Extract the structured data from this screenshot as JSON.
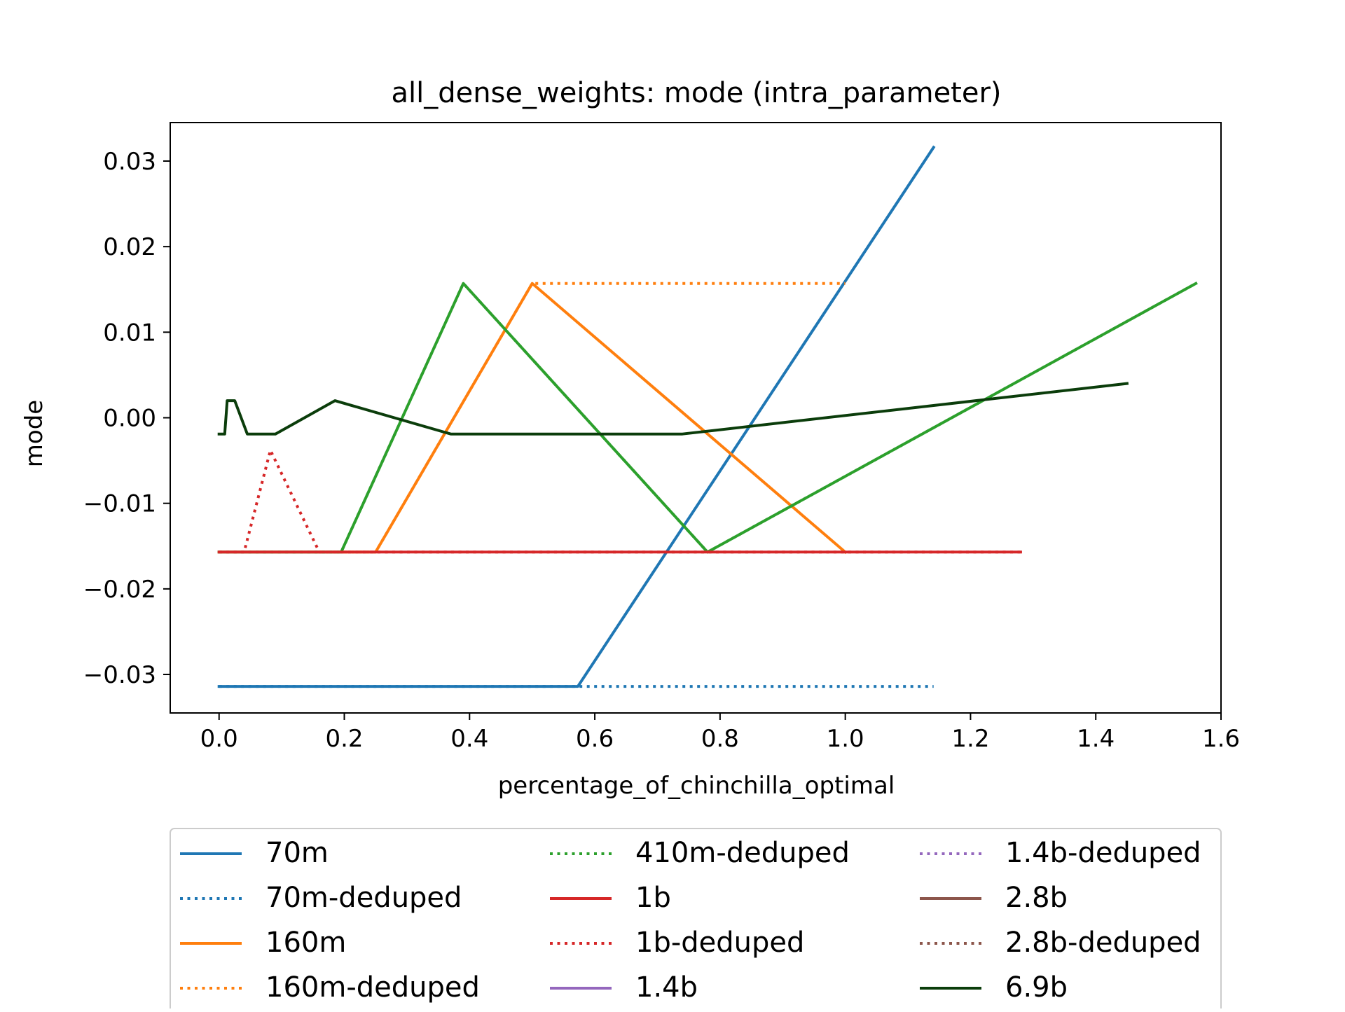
{
  "chart_data": {
    "type": "line",
    "title": "all_dense_weights: mode (intra_parameter)",
    "xlabel": "percentage_of_chinchilla_optimal",
    "ylabel": "mode",
    "xlim": [
      -0.078,
      1.6
    ],
    "ylim": [
      -0.0345,
      0.0345
    ],
    "xticks": [
      0.0,
      0.2,
      0.4,
      0.6,
      0.8,
      1.0,
      1.2,
      1.4,
      1.6
    ],
    "xtick_labels": [
      "0.0",
      "0.2",
      "0.4",
      "0.6",
      "0.8",
      "1.0",
      "1.2",
      "1.4",
      "1.6"
    ],
    "yticks": [
      -0.03,
      -0.02,
      -0.01,
      0.0,
      0.01,
      0.02,
      0.03
    ],
    "ytick_labels": [
      "−0.03",
      "−0.02",
      "−0.01",
      "0.00",
      "0.01",
      "0.02",
      "0.03"
    ],
    "grid": false,
    "legend_position": "below plot, 3 columns",
    "series": [
      {
        "name": "70m",
        "color": "#1f77b4",
        "style": "solid",
        "x": [
          0.0,
          0.573,
          1.141
        ],
        "y": [
          -0.0314,
          -0.0314,
          0.0316
        ]
      },
      {
        "name": "70m-deduped",
        "color": "#1f77b4",
        "style": "dotted",
        "x": [
          0.0,
          1.141
        ],
        "y": [
          -0.0314,
          -0.0314
        ]
      },
      {
        "name": "160m",
        "color": "#ff7f0e",
        "style": "solid",
        "x": [
          0.0,
          0.25,
          0.5,
          1.0
        ],
        "y": [
          -0.0157,
          -0.0157,
          0.0157,
          -0.0157
        ]
      },
      {
        "name": "160m-deduped",
        "color": "#ff7f0e",
        "style": "dotted",
        "x": [
          0.0,
          0.25,
          0.5,
          1.0
        ],
        "y": [
          -0.0157,
          -0.0157,
          0.0157,
          0.0157
        ]
      },
      {
        "name": "410m-deduped",
        "color": "#2ca02c",
        "style": "dotted",
        "x": [
          0.0,
          0.195,
          0.39,
          0.78,
          1.56
        ],
        "y": [
          -0.0157,
          -0.0157,
          0.0157,
          -0.0157,
          0.0157
        ]
      },
      {
        "name": "410m",
        "color": "#2ca02c",
        "style": "solid",
        "legend": false,
        "x": [
          0.0,
          0.195,
          0.39,
          0.78,
          1.56
        ],
        "y": [
          -0.0157,
          -0.0157,
          0.0157,
          -0.0157,
          0.0157
        ]
      },
      {
        "name": "1b",
        "color": "#d62728",
        "style": "solid",
        "x": [
          0.0,
          1.28
        ],
        "y": [
          -0.0157,
          -0.0157
        ]
      },
      {
        "name": "1b-deduped",
        "color": "#d62728",
        "style": "dotted",
        "x": [
          0.0,
          0.04,
          0.082,
          0.16,
          1.28
        ],
        "y": [
          -0.0157,
          -0.0157,
          -0.0038,
          -0.0157,
          -0.0157
        ]
      },
      {
        "name": "1.4b",
        "color": "#9467bd",
        "style": "solid",
        "x": [],
        "y": []
      },
      {
        "name": "1.4b-deduped",
        "color": "#9467bd",
        "style": "dotted",
        "x": [],
        "y": []
      },
      {
        "name": "2.8b",
        "color": "#8c564b",
        "style": "solid",
        "x": [],
        "y": []
      },
      {
        "name": "2.8b-deduped",
        "color": "#8c564b",
        "style": "dotted",
        "x": [],
        "y": []
      },
      {
        "name": "6.9b",
        "color": "#0b3d0b",
        "style": "solid",
        "x": [
          0.0,
          0.009,
          0.013,
          0.025,
          0.045,
          0.09,
          0.185,
          0.37,
          0.74,
          1.45
        ],
        "y": [
          -0.0019,
          -0.0019,
          0.002,
          0.002,
          -0.0019,
          -0.0019,
          0.002,
          -0.0019,
          -0.0019,
          0.004
        ]
      }
    ]
  }
}
